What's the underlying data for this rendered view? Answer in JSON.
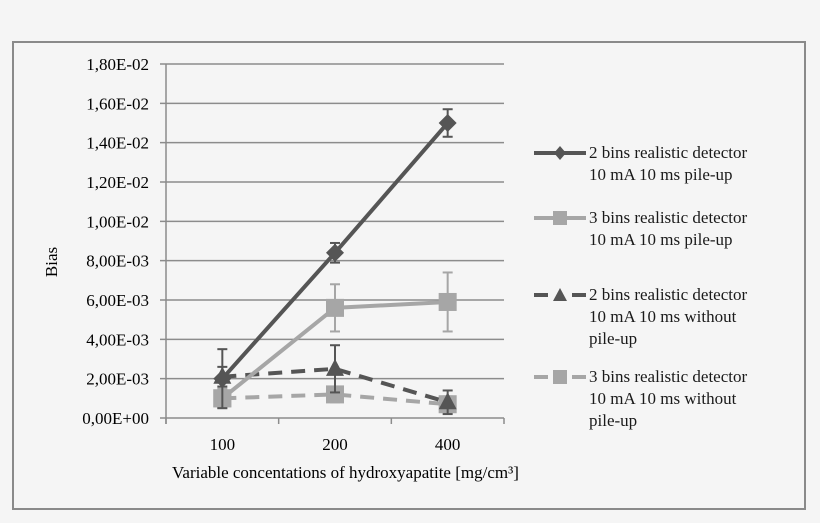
{
  "chart_data": {
    "type": "line",
    "title": "",
    "xlabel": "Variable concentations of hydroxyapatite  [mg/cm³]",
    "ylabel": "Bias",
    "categories": [
      "100",
      "200",
      "400"
    ],
    "ylim": [
      0,
      0.018
    ],
    "yticks": [
      "0,00E+00",
      "2,00E-03",
      "4,00E-03",
      "6,00E-03",
      "8,00E-03",
      "1,00E-02",
      "1,20E-02",
      "1,40E-02",
      "1,60E-02",
      "1,80E-02"
    ],
    "grid": true,
    "legend_position": "right",
    "series": [
      {
        "name": "2 bins realistic detector 10 mA 10 ms pile-up",
        "label_lines": "2 bins realistic detector\n10 mA  10 ms pile-up",
        "marker": "diamond",
        "line": "solid",
        "color": "#555555",
        "values": [
          0.002,
          0.0084,
          0.015
        ],
        "error": [
          0.0015,
          0.0005,
          0.0007
        ]
      },
      {
        "name": "3 bins realistic detector 10 mA 10 ms pile-up",
        "label_lines": "3 bins realistic detector\n10 mA  10 ms pile-up",
        "marker": "square",
        "line": "solid",
        "color": "#a6a6a6",
        "values": [
          0.001,
          0.0056,
          0.0059
        ],
        "error": [
          0.0005,
          0.0012,
          0.0015
        ]
      },
      {
        "name": "2 bins realistic detector 10 mA 10 ms without pile-up",
        "label_lines": "2 bins realistic detector\n10 mA  10 ms without\npile-up",
        "marker": "triangle",
        "line": "dashed",
        "color": "#555555",
        "values": [
          0.0021,
          0.0025,
          0.0008
        ],
        "error": [
          0.0005,
          0.0012,
          0.0006
        ]
      },
      {
        "name": "3 bins realistic detector 10 mA 10 ms without pile-up",
        "label_lines": "3 bins realistic detector\n10 mA  10 ms without\npile-up",
        "marker": "square",
        "line": "dashed",
        "color": "#a6a6a6",
        "values": [
          0.001,
          0.0012,
          0.0007
        ],
        "error": [
          0.0004,
          0.0004,
          0.0004
        ]
      }
    ]
  }
}
